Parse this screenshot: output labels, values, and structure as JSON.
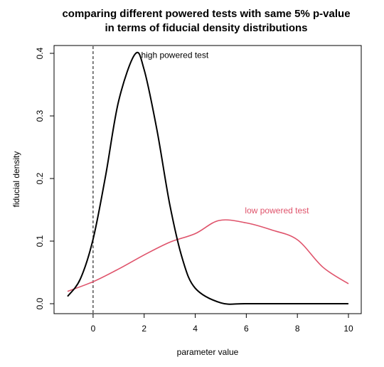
{
  "chart_data": {
    "type": "line",
    "title": "comparing different powered tests with same 5% p-value",
    "subtitle": "in terms of fiducial density distributions",
    "xlabel": "parameter value",
    "ylabel": "fiducial density",
    "xlim": [
      -1.0,
      10.0
    ],
    "ylim": [
      0.0,
      0.4
    ],
    "x_ticks": [
      0,
      2,
      4,
      6,
      8,
      10
    ],
    "x_tick_labels": [
      "0",
      "2",
      "4",
      "6",
      "8",
      "10"
    ],
    "y_ticks": [
      0.0,
      0.1,
      0.2,
      0.3,
      0.4
    ],
    "y_tick_labels": [
      "0.0",
      "0.1",
      "0.2",
      "0.3",
      "0.4"
    ],
    "grid": false,
    "reference_line": {
      "x": 0,
      "style": "dashed"
    },
    "series": [
      {
        "name": "high powered test",
        "color": "#000000",
        "x": [
          -1.0,
          -0.5,
          0.0,
          0.5,
          1.0,
          1.645,
          2.0,
          2.5,
          3.0,
          3.5,
          4.0,
          5.0,
          6.0,
          8.0,
          10.0
        ],
        "y": [
          0.0117,
          0.0395,
          0.1031,
          0.2069,
          0.3238,
          0.3989,
          0.3739,
          0.2776,
          0.1592,
          0.0714,
          0.0248,
          0.0014,
          0.0,
          0.0,
          0.0
        ]
      },
      {
        "name": "low powered test",
        "color": "#DF536B",
        "x": [
          -1.0,
          0.0,
          1.0,
          2.0,
          3.0,
          4.0,
          4.935,
          6.0,
          7.0,
          8.0,
          9.0,
          10.0
        ],
        "y": [
          0.0198,
          0.0351,
          0.0554,
          0.0779,
          0.0982,
          0.1119,
          0.133,
          0.1291,
          0.1177,
          0.1022,
          0.0583,
          0.0319
        ]
      }
    ],
    "annotations": [
      {
        "text": "high powered test",
        "x": 3.2,
        "y": 0.397,
        "series": 0
      },
      {
        "text": "low powered test",
        "x": 7.2,
        "y": 0.149,
        "series": 1
      }
    ]
  }
}
